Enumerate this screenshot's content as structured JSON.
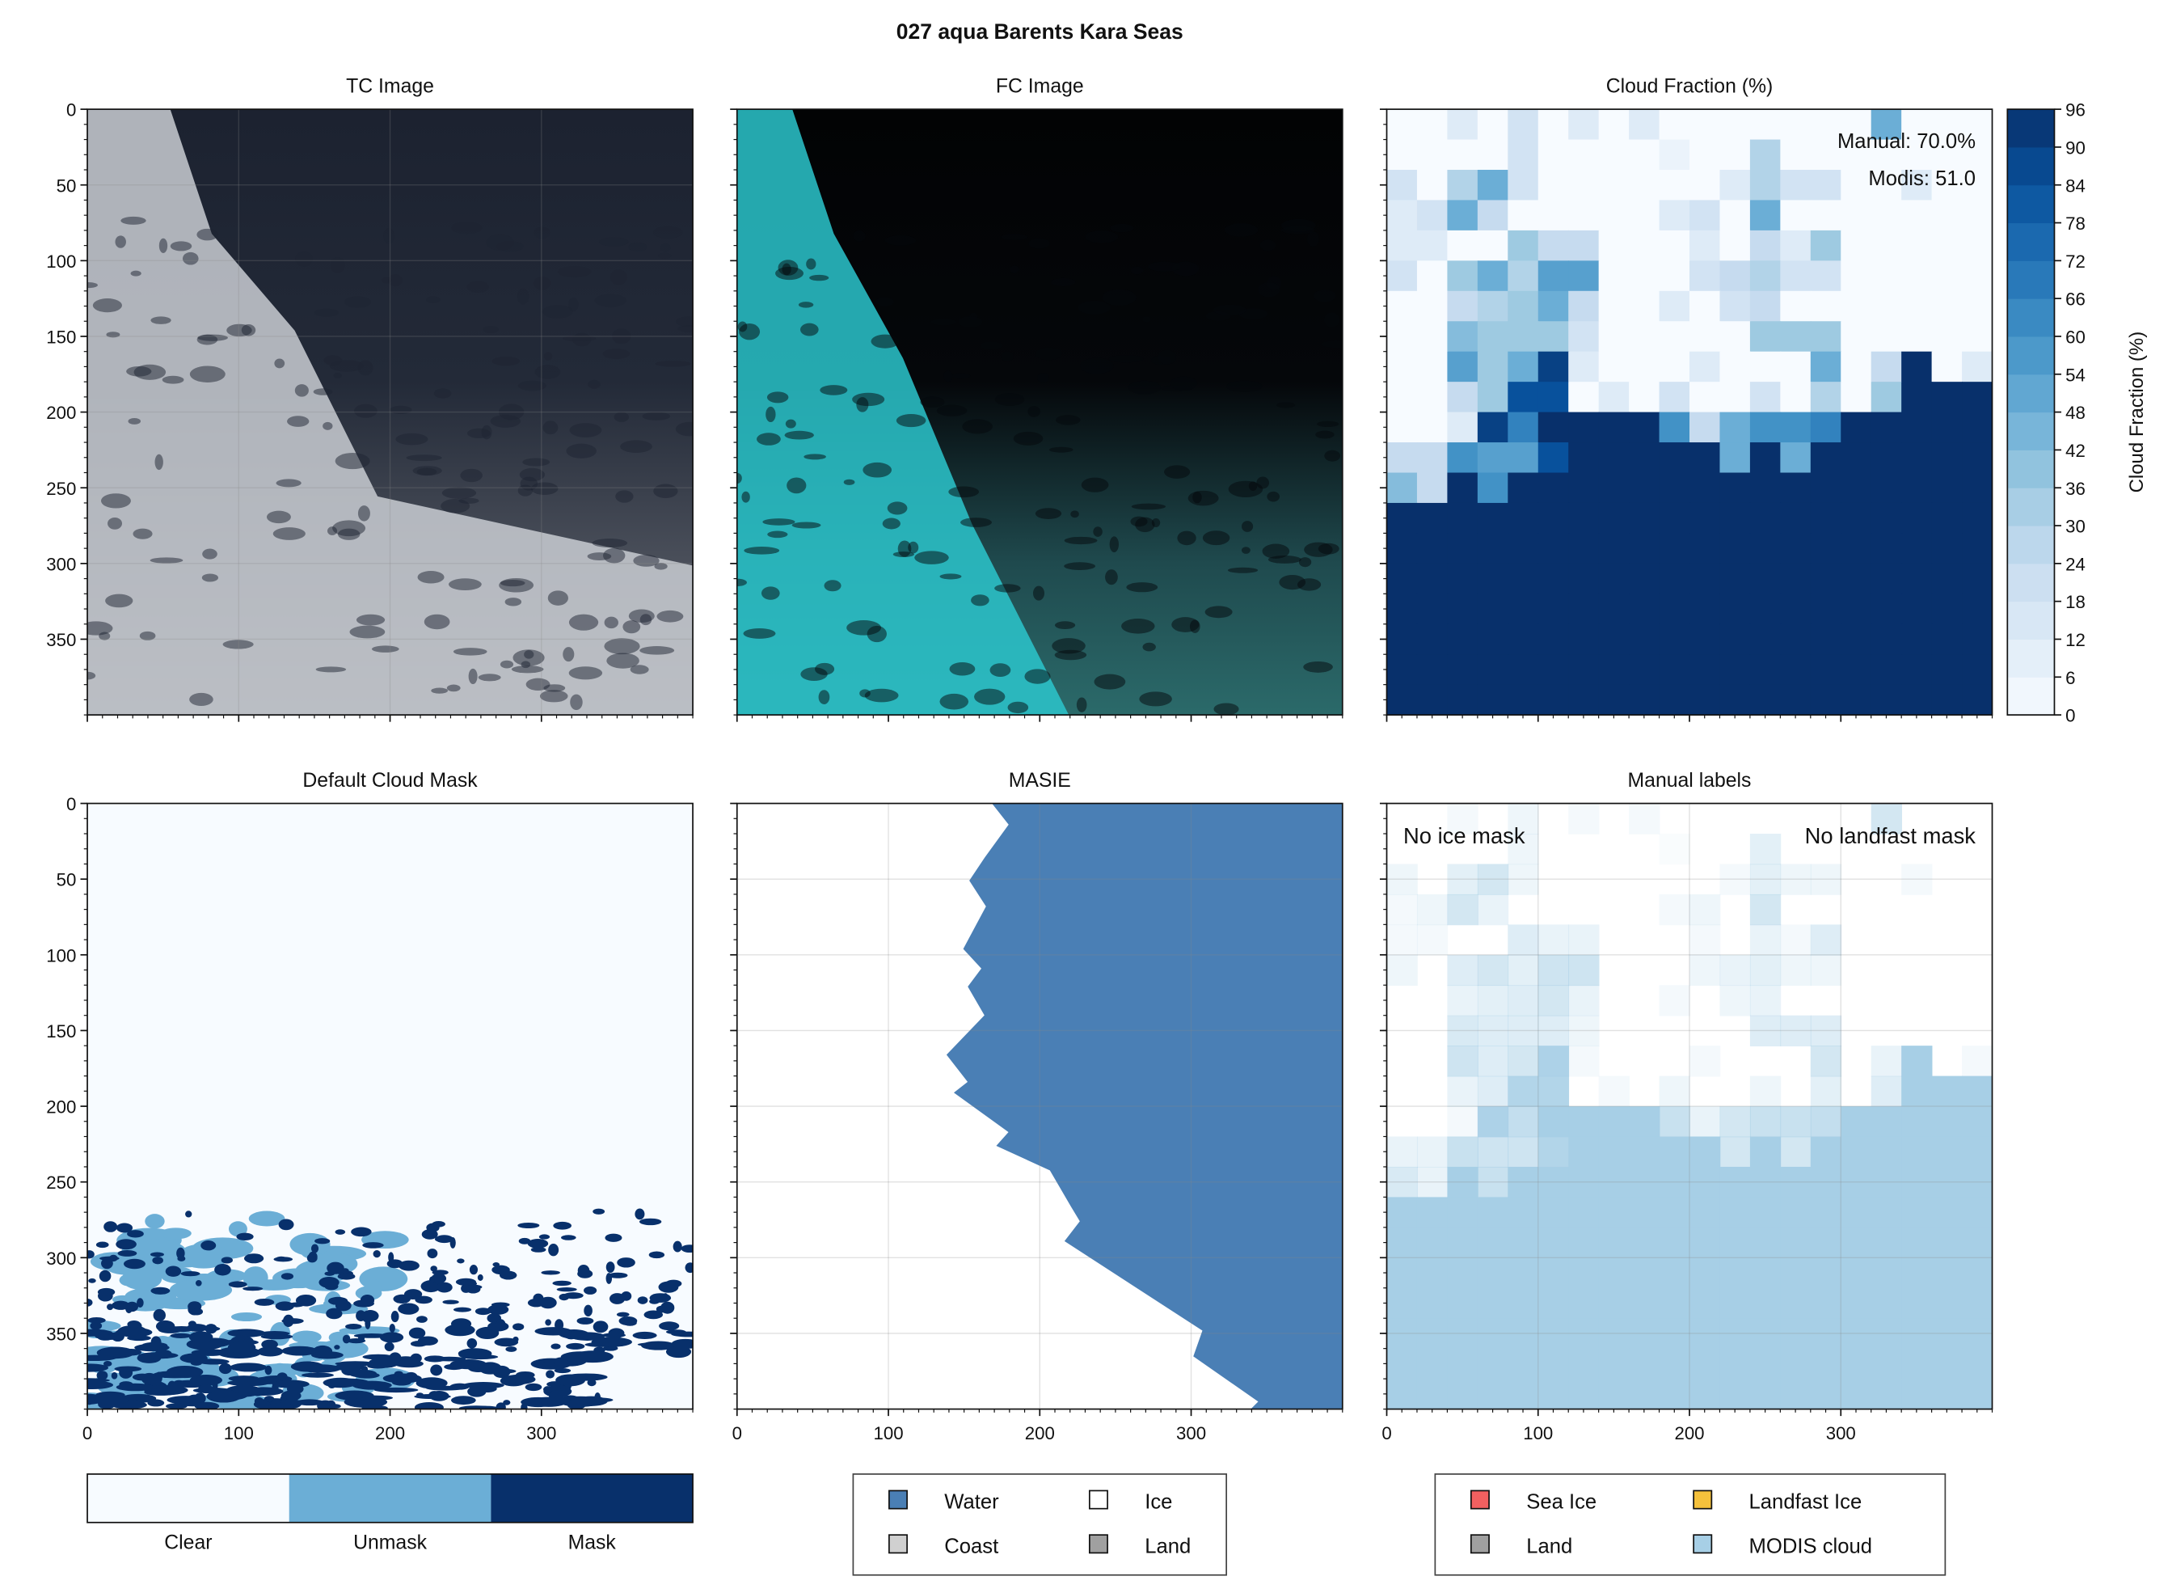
{
  "title": "027 aqua Barents Kara Seas",
  "chart_data": [
    {
      "type": "image",
      "title": "TC Image",
      "xlim": [
        0,
        400
      ],
      "ylim": [
        400,
        0
      ],
      "xticks": [
        0,
        100,
        200,
        300
      ],
      "yticks": [
        0,
        50,
        100,
        150,
        200,
        250,
        300,
        350
      ],
      "grid": true
    },
    {
      "type": "image",
      "title": "FC Image",
      "xlim": [
        0,
        400
      ],
      "ylim": [
        400,
        0
      ],
      "xticks": [
        0,
        100,
        200,
        300
      ],
      "yticks": [
        0,
        50,
        100,
        150,
        200,
        250,
        300,
        350
      ],
      "grid": false
    },
    {
      "type": "heatmap",
      "title": "Cloud Fraction (%)",
      "xlim": [
        0,
        400
      ],
      "ylim": [
        400,
        0
      ],
      "xticks": [
        0,
        100,
        200,
        300
      ],
      "yticks": [
        0,
        50,
        100,
        150,
        200,
        250,
        300,
        350
      ],
      "annotations": [
        "Manual: 70.0%",
        "Modis: 51.0"
      ],
      "colorbar": {
        "label": "Cloud Fraction (%)",
        "lim": [
          0,
          96
        ],
        "ticks": [
          0,
          6,
          12,
          18,
          24,
          30,
          36,
          42,
          48,
          54,
          60,
          66,
          72,
          78,
          84,
          90,
          96
        ]
      },
      "values": [
        [
          0,
          0,
          12,
          0,
          18,
          0,
          12,
          0,
          12,
          0,
          0,
          0,
          0,
          0,
          0,
          0,
          48,
          0,
          0,
          0
        ],
        [
          0,
          0,
          0,
          0,
          18,
          0,
          0,
          0,
          0,
          6,
          0,
          0,
          30,
          0,
          0,
          0,
          0,
          0,
          0,
          0
        ],
        [
          18,
          0,
          30,
          48,
          18,
          0,
          0,
          0,
          0,
          0,
          0,
          12,
          30,
          18,
          18,
          0,
          0,
          12,
          0,
          0
        ],
        [
          12,
          18,
          48,
          24,
          0,
          0,
          0,
          0,
          0,
          12,
          18,
          0,
          48,
          0,
          0,
          0,
          0,
          0,
          0,
          0
        ],
        [
          12,
          12,
          0,
          0,
          36,
          24,
          24,
          0,
          0,
          0,
          12,
          0,
          24,
          12,
          36,
          0,
          0,
          0,
          0,
          0
        ],
        [
          18,
          0,
          36,
          48,
          30,
          54,
          54,
          0,
          0,
          0,
          18,
          24,
          30,
          18,
          18,
          0,
          0,
          0,
          0,
          0
        ],
        [
          0,
          0,
          24,
          30,
          36,
          48,
          24,
          0,
          0,
          12,
          0,
          18,
          24,
          0,
          0,
          0,
          0,
          0,
          0,
          0
        ],
        [
          0,
          0,
          42,
          36,
          36,
          36,
          18,
          0,
          0,
          0,
          0,
          0,
          36,
          36,
          36,
          0,
          0,
          0,
          0,
          0
        ],
        [
          0,
          0,
          54,
          36,
          48,
          90,
          12,
          0,
          0,
          0,
          12,
          0,
          0,
          0,
          48,
          0,
          24,
          96,
          0,
          12
        ],
        [
          0,
          0,
          24,
          36,
          84,
          84,
          0,
          12,
          0,
          18,
          0,
          0,
          18,
          0,
          30,
          0,
          36,
          96,
          96,
          96
        ],
        [
          0,
          0,
          12,
          90,
          66,
          96,
          96,
          96,
          96,
          60,
          24,
          48,
          60,
          60,
          66,
          96,
          96,
          96,
          96,
          96
        ],
        [
          24,
          24,
          60,
          54,
          54,
          84,
          96,
          96,
          96,
          96,
          96,
          48,
          96,
          48,
          96,
          96,
          96,
          96,
          96,
          96
        ],
        [
          42,
          24,
          96,
          60,
          96,
          96,
          96,
          96,
          96,
          96,
          96,
          96,
          96,
          96,
          96,
          96,
          96,
          96,
          96,
          96
        ],
        [
          96,
          96,
          96,
          96,
          96,
          96,
          96,
          96,
          96,
          96,
          96,
          96,
          96,
          96,
          96,
          96,
          96,
          96,
          96,
          96
        ],
        [
          96,
          96,
          96,
          96,
          96,
          96,
          96,
          96,
          96,
          96,
          96,
          96,
          96,
          96,
          96,
          96,
          96,
          96,
          96,
          96
        ],
        [
          96,
          96,
          96,
          96,
          96,
          96,
          96,
          96,
          96,
          96,
          96,
          96,
          96,
          96,
          96,
          96,
          96,
          96,
          96,
          96
        ],
        [
          96,
          96,
          96,
          96,
          96,
          96,
          96,
          96,
          96,
          96,
          96,
          96,
          96,
          96,
          96,
          96,
          96,
          96,
          96,
          96
        ],
        [
          96,
          96,
          96,
          96,
          96,
          96,
          96,
          96,
          96,
          96,
          96,
          96,
          96,
          96,
          96,
          96,
          96,
          96,
          96,
          96
        ],
        [
          96,
          96,
          96,
          96,
          96,
          96,
          96,
          96,
          96,
          96,
          96,
          96,
          96,
          96,
          96,
          96,
          96,
          96,
          96,
          96
        ],
        [
          96,
          96,
          96,
          96,
          96,
          96,
          96,
          96,
          96,
          96,
          96,
          96,
          96,
          96,
          96,
          96,
          96,
          96,
          96,
          96
        ]
      ]
    },
    {
      "type": "mask",
      "title": "Default Cloud Mask",
      "xlim": [
        0,
        400
      ],
      "ylim": [
        400,
        0
      ],
      "xticks": [
        0,
        100,
        200,
        300
      ],
      "yticks": [
        0,
        50,
        100,
        150,
        200,
        250,
        300,
        350
      ],
      "legend": [
        {
          "name": "Clear",
          "color": "#f7fbff"
        },
        {
          "name": "Unmask",
          "color": "#6baed6"
        },
        {
          "name": "Mask",
          "color": "#08306b"
        }
      ]
    },
    {
      "type": "area",
      "title": "MASIE",
      "xlim": [
        0,
        400
      ],
      "ylim": [
        400,
        0
      ],
      "xticks": [
        0,
        100,
        200,
        300
      ],
      "yticks": [
        0,
        50,
        100,
        150,
        200,
        250,
        300,
        350
      ],
      "grid": true,
      "color": "#4a7fb5",
      "x": [
        169,
        180,
        164,
        154,
        165,
        150,
        162,
        153,
        164,
        139,
        153,
        144,
        180,
        172,
        207,
        221,
        227,
        217,
        308,
        302,
        345,
        340
      ],
      "y": [
        0,
        14,
        36,
        51,
        68,
        96,
        109,
        121,
        140,
        166,
        184,
        191,
        217,
        226,
        242,
        266,
        276,
        289,
        348,
        365,
        395,
        400
      ],
      "legend": [
        {
          "name": "Water",
          "color": "#4a7fb5"
        },
        {
          "name": "Coast",
          "color": "#d0d0d0"
        },
        {
          "name": "Ice",
          "color": "#ffffff"
        },
        {
          "name": "Land",
          "color": "#a0a0a0"
        }
      ]
    },
    {
      "type": "labels",
      "title": "Manual labels",
      "xlim": [
        0,
        400
      ],
      "ylim": [
        400,
        0
      ],
      "xticks": [
        0,
        100,
        200,
        300
      ],
      "yticks": [
        0,
        50,
        100,
        150,
        200,
        250,
        300,
        350
      ],
      "grid": true,
      "annotations": [
        "No ice mask",
        "No landfast mask"
      ],
      "legend": [
        {
          "name": "Sea Ice",
          "color": "#f26060"
        },
        {
          "name": "Land",
          "color": "#a0a0a0"
        },
        {
          "name": "Landfast Ice",
          "color": "#f5c13c"
        },
        {
          "name": "MODIS cloud",
          "color": "#a7cfe6"
        }
      ]
    }
  ]
}
